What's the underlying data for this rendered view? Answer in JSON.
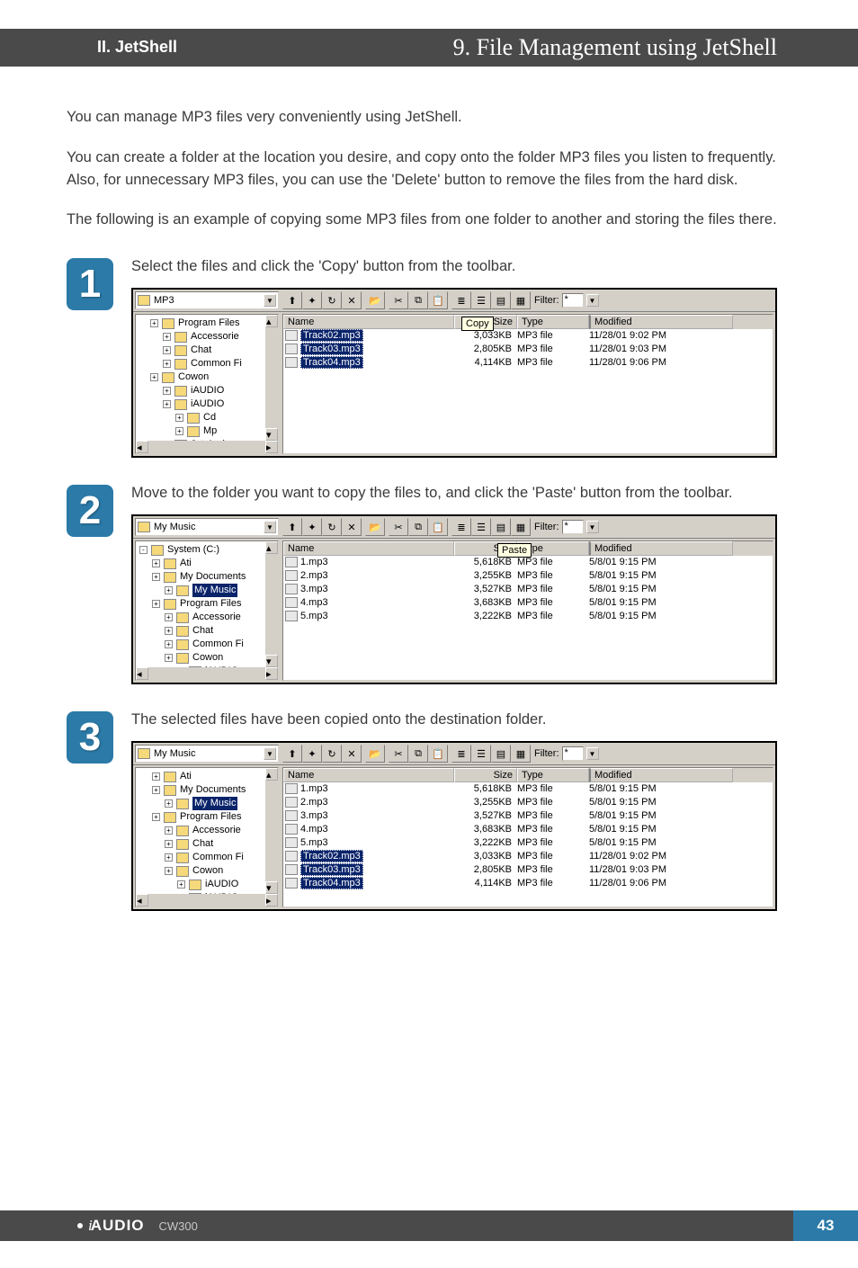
{
  "header": {
    "section": "II.  JetShell",
    "title": "9. File Management using JetShell"
  },
  "intro": {
    "p1": "You can manage MP3 files very conveniently using JetShell.",
    "p2": "You can create a folder at the location you desire, and copy onto the folder MP3 files you listen to frequently. Also, for unnecessary MP3 files, you can use the 'Delete' button to remove the files from the hard disk.",
    "p3": "The following is an example of copying some MP3 files from one folder to another and storing the files there."
  },
  "steps": {
    "s1": {
      "num": "1",
      "text": "Select the files and click the 'Copy' button from the toolbar."
    },
    "s2": {
      "num": "2",
      "text": "Move to the folder you want to copy the files to, and click the 'Paste' button from the toolbar."
    },
    "s3": {
      "num": "3",
      "text": "The selected files have been copied onto the destination folder."
    }
  },
  "fm1": {
    "path": "MP3",
    "filter_label": "Filter:",
    "filter_value": "*",
    "tooltip": "Copy",
    "cols": {
      "name": "Name",
      "size": "Size",
      "type": "Type",
      "modified": "Modified"
    },
    "tree": [
      "Program Files",
      "Accessorie",
      "Chat",
      "Common Fi",
      "Cowon",
      "iAUDIO",
      "iAUDIO",
      "Cd",
      "Mp",
      "Jet-Aud"
    ],
    "files": [
      {
        "name": "Track02.mp3",
        "size": "3,033KB",
        "type": "MP3 file",
        "mod": "11/28/01 9:02 PM",
        "sel": true
      },
      {
        "name": "Track03.mp3",
        "size": "2,805KB",
        "type": "MP3 file",
        "mod": "11/28/01 9:03 PM",
        "sel": true
      },
      {
        "name": "Track04.mp3",
        "size": "4,114KB",
        "type": "MP3 file",
        "mod": "11/28/01 9:06 PM",
        "sel": true
      }
    ]
  },
  "fm2": {
    "path": "My Music",
    "filter_label": "Filter:",
    "filter_value": "*",
    "tooltip": "Paste",
    "cols": {
      "name": "Name",
      "size": "Size",
      "type": "Type",
      "modified": "Modified"
    },
    "tree_root": "System (C:)",
    "tree": [
      "Ati",
      "My Documents",
      "My Music",
      "Program Files",
      "Accessorie",
      "Chat",
      "Common Fi",
      "Cowon",
      "iAUDIO"
    ],
    "sel_node": "My Music",
    "files": [
      {
        "name": "1.mp3",
        "size": "5,618KB",
        "type": "MP3 file",
        "mod": "5/8/01 9:15 PM"
      },
      {
        "name": "2.mp3",
        "size": "3,255KB",
        "type": "MP3 file",
        "mod": "5/8/01 9:15 PM"
      },
      {
        "name": "3.mp3",
        "size": "3,527KB",
        "type": "MP3 file",
        "mod": "5/8/01 9:15 PM"
      },
      {
        "name": "4.mp3",
        "size": "3,683KB",
        "type": "MP3 file",
        "mod": "5/8/01 9:15 PM"
      },
      {
        "name": "5.mp3",
        "size": "3,222KB",
        "type": "MP3 file",
        "mod": "5/8/01 9:15 PM"
      }
    ]
  },
  "fm3": {
    "path": "My Music",
    "filter_label": "Filter:",
    "filter_value": "*",
    "cols": {
      "name": "Name",
      "size": "Size",
      "type": "Type",
      "modified": "Modified"
    },
    "tree": [
      "Ati",
      "My Documents",
      "My Music",
      "Program Files",
      "Accessorie",
      "Chat",
      "Common Fi",
      "Cowon",
      "iAUDIO",
      "iAUDIO"
    ],
    "sel_node": "My Music",
    "files": [
      {
        "name": "1.mp3",
        "size": "5,618KB",
        "type": "MP3 file",
        "mod": "5/8/01 9:15 PM"
      },
      {
        "name": "2.mp3",
        "size": "3,255KB",
        "type": "MP3 file",
        "mod": "5/8/01 9:15 PM"
      },
      {
        "name": "3.mp3",
        "size": "3,527KB",
        "type": "MP3 file",
        "mod": "5/8/01 9:15 PM"
      },
      {
        "name": "4.mp3",
        "size": "3,683KB",
        "type": "MP3 file",
        "mod": "5/8/01 9:15 PM"
      },
      {
        "name": "5.mp3",
        "size": "3,222KB",
        "type": "MP3 file",
        "mod": "5/8/01 9:15 PM"
      },
      {
        "name": "Track02.mp3",
        "size": "3,033KB",
        "type": "MP3 file",
        "mod": "11/28/01 9:02 PM",
        "sel": true
      },
      {
        "name": "Track03.mp3",
        "size": "2,805KB",
        "type": "MP3 file",
        "mod": "11/28/01 9:03 PM",
        "sel": true
      },
      {
        "name": "Track04.mp3",
        "size": "4,114KB",
        "type": "MP3 file",
        "mod": "11/28/01 9:06 PM",
        "sel": true
      }
    ]
  },
  "footer": {
    "brand_i": "i",
    "brand": "AUDIO",
    "model": "CW300",
    "page": "43"
  },
  "glyphs": {
    "up": "⬆",
    "new": "✦",
    "refresh": "↻",
    "delete": "✕",
    "open": "📂",
    "cut": "✂",
    "copy": "⧉",
    "paste": "📋",
    "sort": "≣",
    "view1": "☰",
    "view2": "▤",
    "list": "▦",
    "down": "▼",
    "left": "◀",
    "right": "▶"
  },
  "colors": {
    "header_bg": "#4a4a4a",
    "accent": "#2b7aa8",
    "win_bg": "#d4d0c8",
    "sel_bg": "#0a246a",
    "tooltip_bg": "#ffffe1"
  }
}
